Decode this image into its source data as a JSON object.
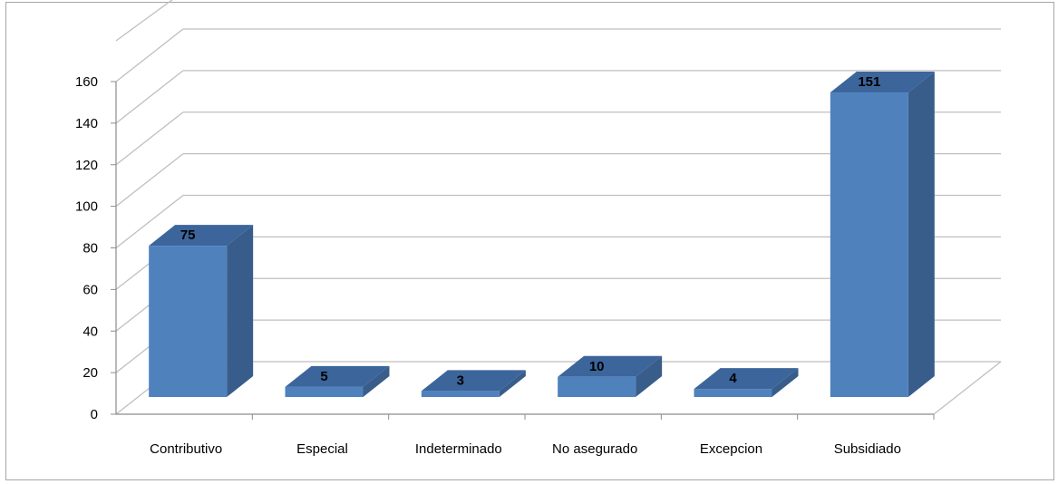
{
  "chart_data": {
    "type": "bar",
    "style": "3d-column",
    "title": "",
    "xlabel": "",
    "ylabel": "",
    "categories": [
      "Contributivo",
      "Especial",
      "Indeterminado",
      "No asegurado",
      "Excepcion",
      "Subsidiado"
    ],
    "values": [
      75,
      5,
      3,
      10,
      4,
      151
    ],
    "data_labels": [
      "75",
      "5",
      "3",
      "10",
      "4",
      "151"
    ],
    "ylim": [
      0,
      160
    ],
    "yticks": [
      "0",
      "20",
      "40",
      "60",
      "80",
      "100",
      "120",
      "140",
      "160"
    ],
    "grid": true,
    "legend": "none",
    "colors": {
      "bar_front": "#4f81bd",
      "bar_side": "#385d8a",
      "bar_top": "#3c659c",
      "gridline": "#bfbfbf",
      "axis": "#8c8c8c"
    }
  }
}
